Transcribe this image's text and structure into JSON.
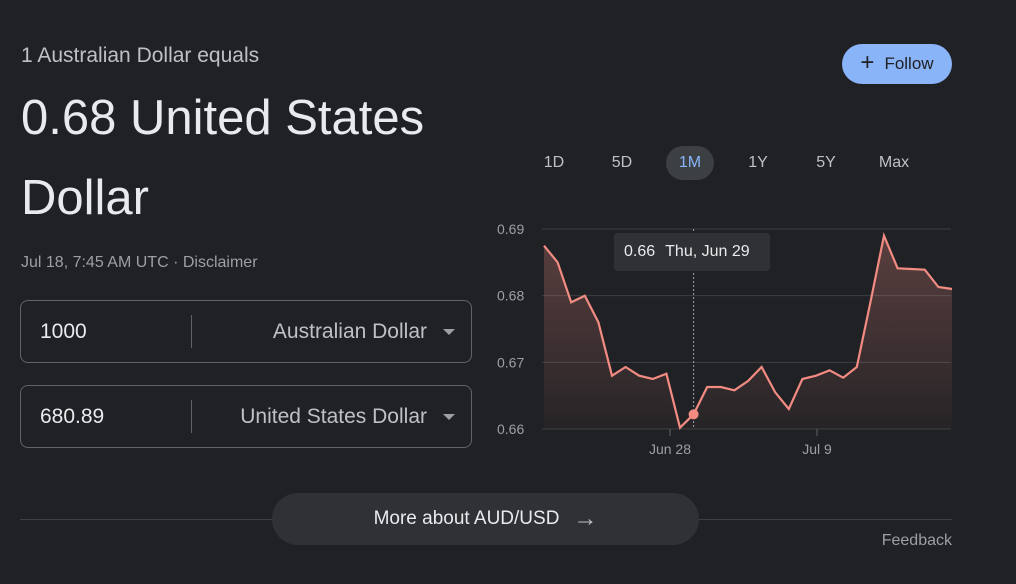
{
  "header": {
    "subtitle": "1 Australian Dollar equals",
    "headline": "0.68 United States Dollar",
    "timestamp": "Jul 18, 7:45 AM UTC",
    "separator": " · ",
    "disclaimer": "Disclaimer"
  },
  "follow": {
    "label": "Follow",
    "icon": "plus-icon"
  },
  "converter": {
    "from": {
      "amount": "1000",
      "currency": "Australian Dollar"
    },
    "to": {
      "amount": "680.89",
      "currency": "United States Dollar"
    }
  },
  "ranges": {
    "items": [
      "1D",
      "5D",
      "1M",
      "1Y",
      "5Y",
      "Max"
    ],
    "selected": "1M"
  },
  "tooltip": {
    "value": "0.66",
    "date": "Thu, Jun 29"
  },
  "chart_data": {
    "type": "area",
    "line_color": "#f28b82",
    "title": "",
    "xlabel": "",
    "ylabel": "",
    "ylim": [
      0.66,
      0.69
    ],
    "y_ticks": [
      "0.69",
      "0.68",
      "0.67",
      "0.66"
    ],
    "x_ticks": [
      "Jun 28",
      "Jul 9"
    ],
    "grid": true,
    "highlighted_point": {
      "value": 0.6622,
      "label": "Thu, Jun 29"
    },
    "values": [
      0.6875,
      0.685,
      0.679,
      0.68,
      0.676,
      0.668,
      0.6693,
      0.668,
      0.6675,
      0.6683,
      0.6602,
      0.6622,
      0.6663,
      0.6663,
      0.6658,
      0.6672,
      0.6693,
      0.6655,
      0.663,
      0.6675,
      0.668,
      0.6688,
      0.6677,
      0.6693,
      0.679,
      0.689,
      0.6841,
      0.684,
      0.6839,
      0.6813,
      0.681
    ]
  },
  "more": {
    "label": "More about AUD/USD",
    "icon": "arrow-right-icon"
  },
  "feedback": "Feedback"
}
